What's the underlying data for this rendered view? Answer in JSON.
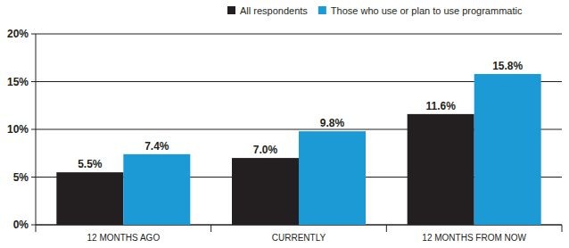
{
  "chart_data": {
    "type": "bar",
    "categories": [
      "12 MONTHS AGO",
      "CURRENTLY",
      "12 MONTHS FROM NOW"
    ],
    "series": [
      {
        "name": "All respondents",
        "color": "#231f20",
        "values": [
          5.5,
          7.0,
          11.6
        ],
        "value_labels": [
          "5.5%",
          "7.0%",
          "11.6%"
        ]
      },
      {
        "name": "Those who use or plan to use programmatic",
        "color": "#1b9ad6",
        "values": [
          7.4,
          9.8,
          15.8
        ],
        "value_labels": [
          "7.4%",
          "9.8%",
          "15.8%"
        ]
      }
    ],
    "ylim": [
      0,
      20
    ],
    "yticks": [
      {
        "value": 0,
        "label": "0%"
      },
      {
        "value": 5,
        "label": "5%"
      },
      {
        "value": 10,
        "label": "10%"
      },
      {
        "value": 15,
        "label": "15%"
      },
      {
        "value": 20,
        "label": "20%"
      }
    ],
    "grid": true,
    "legend": "top",
    "data_labels": true
  }
}
